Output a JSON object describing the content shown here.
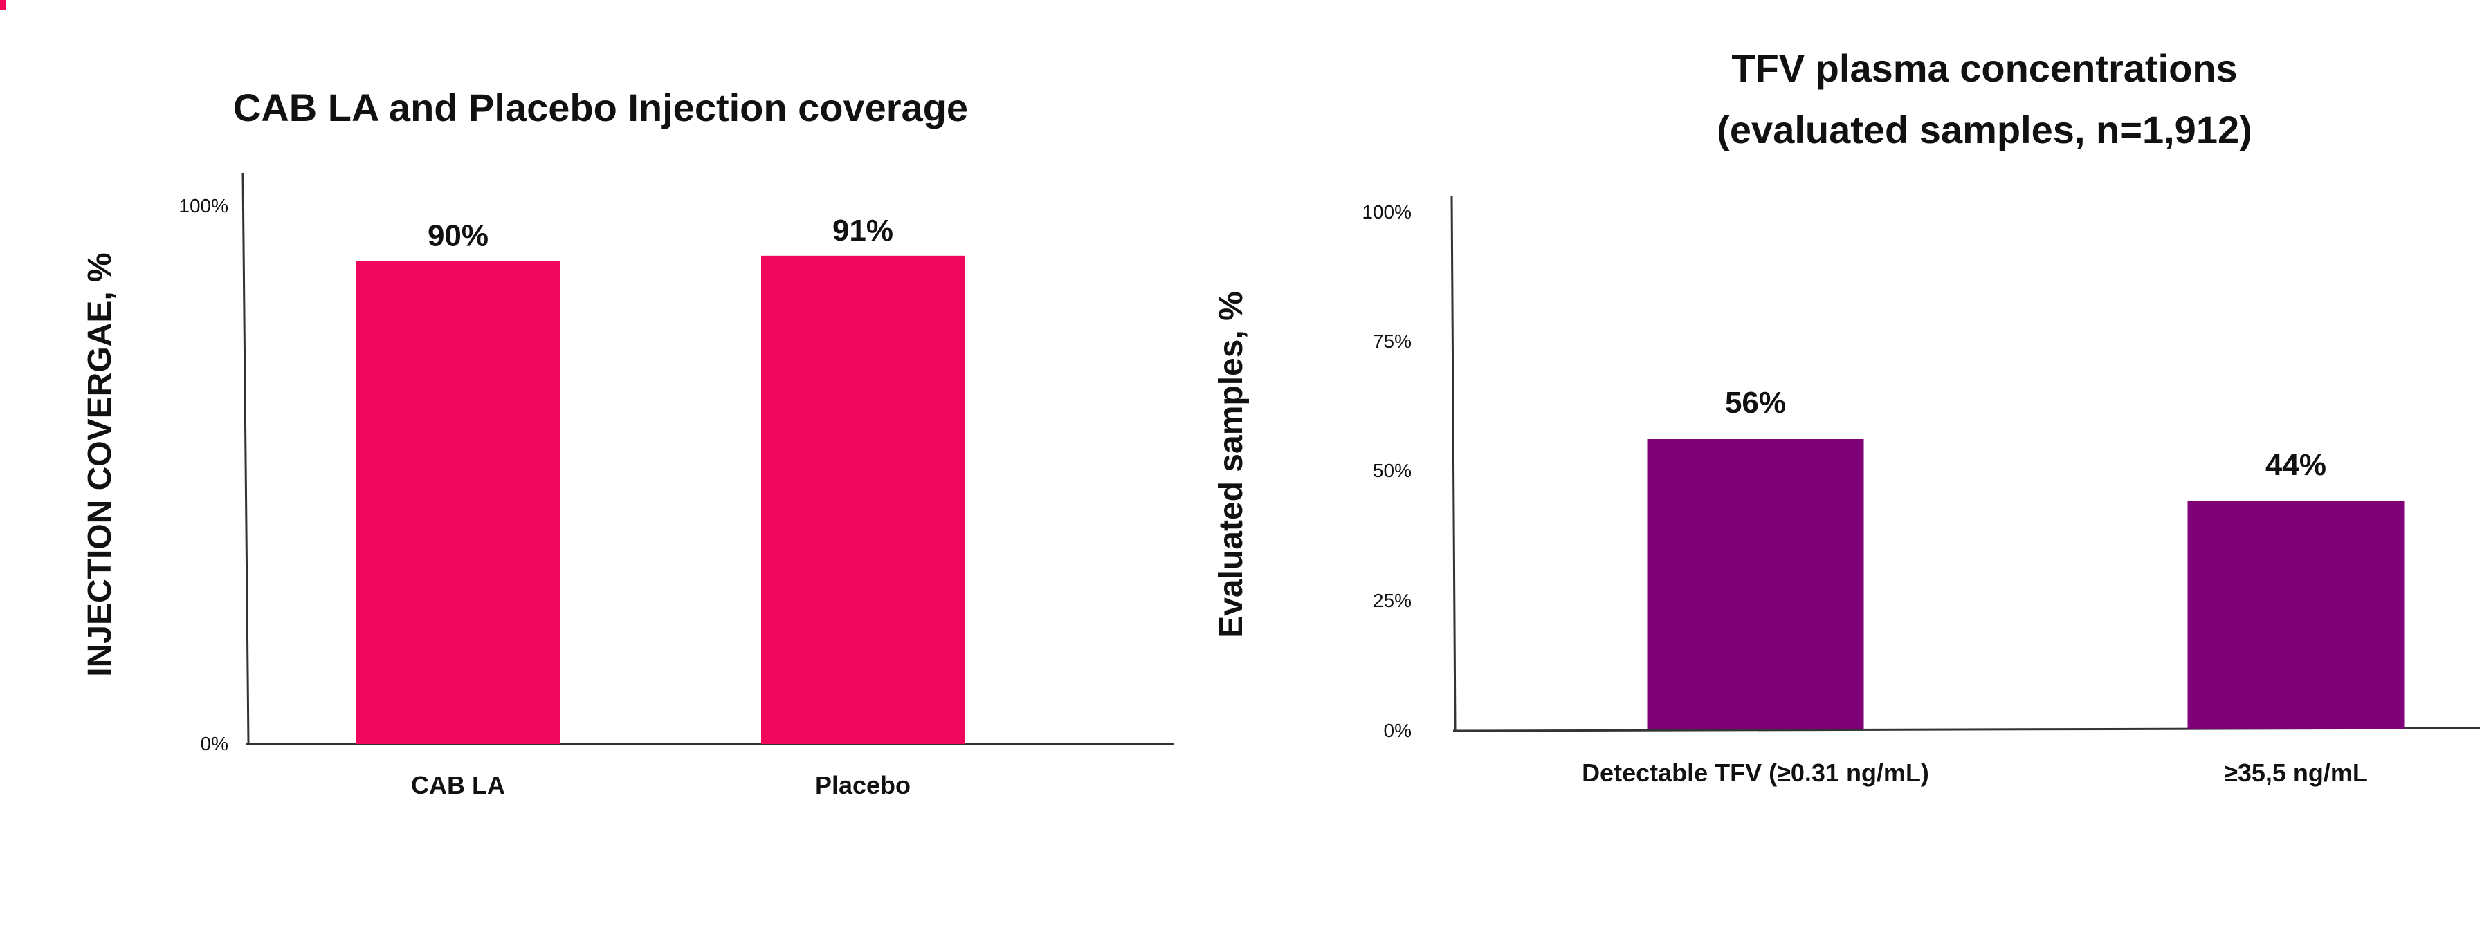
{
  "chart_data": [
    {
      "type": "bar",
      "title": "CAB LA and Placebo Injection coverage",
      "ylabel": "INJECTION COVERGAE, %",
      "xlabel": "",
      "categories": [
        "CAB LA",
        "Placebo"
      ],
      "values": [
        90,
        91
      ],
      "data_labels": [
        "90%",
        "91%"
      ],
      "ylim": [
        0,
        100
      ],
      "yticks": [
        0,
        100
      ],
      "ytick_labels": [
        "0%",
        "100%"
      ],
      "bar_color": "#f0065b",
      "grid": false,
      "legend": "none"
    },
    {
      "type": "bar",
      "title": "TFV plasma concentrations",
      "subtitle": "(evaluated samples, n=1,912)",
      "ylabel": "Evaluated samples, %",
      "xlabel": "",
      "categories": [
        "Detectable TFV  (≥0.31 ng/mL)",
        "≥35,5 ng/mL"
      ],
      "values": [
        56,
        44
      ],
      "data_labels": [
        "56%",
        "44%"
      ],
      "ylim": [
        0,
        100
      ],
      "yticks": [
        0,
        25,
        50,
        75,
        100
      ],
      "ytick_labels": [
        "0%",
        "25%",
        "50%",
        "75%",
        "100%"
      ],
      "bar_color": "#800078",
      "grid": false,
      "legend": "none"
    }
  ]
}
